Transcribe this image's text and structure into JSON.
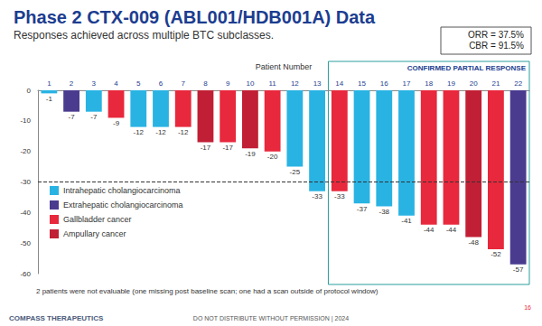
{
  "chart_data": {
    "type": "bar",
    "title": "Phase 2 CTX-009 (ABL001/HDB001A) Data",
    "subtitle": "Responses achieved across multiple BTC subclasses.",
    "x_label": "Patient Number",
    "categories": [
      "1",
      "2",
      "3",
      "4",
      "5",
      "6",
      "7",
      "8",
      "9",
      "10",
      "11",
      "12",
      "13",
      "14",
      "15",
      "16",
      "17",
      "18",
      "19",
      "20",
      "21",
      "22"
    ],
    "series": [
      {
        "name": "Intrahepatic cholangiocarcinoma",
        "color": "#29b3e3",
        "values": [
          -1,
          null,
          -7,
          null,
          -12,
          -12,
          null,
          null,
          null,
          null,
          null,
          -25,
          -33,
          null,
          -37,
          -38,
          -41,
          null,
          null,
          null,
          null,
          null
        ]
      },
      {
        "name": "Extrahepatic cholangiocarcinoma",
        "color": "#4a3b8f",
        "values": [
          null,
          -7,
          null,
          null,
          null,
          null,
          null,
          null,
          null,
          null,
          null,
          null,
          null,
          null,
          null,
          null,
          null,
          null,
          null,
          null,
          null,
          -57
        ]
      },
      {
        "name": "Gallbladder cancer",
        "color": "#e8283c",
        "values": [
          null,
          null,
          null,
          -9,
          null,
          null,
          -12,
          null,
          -17,
          null,
          -20,
          null,
          null,
          -33,
          null,
          null,
          null,
          -44,
          -44,
          null,
          -52,
          null
        ]
      },
      {
        "name": "Ampullary cancer",
        "color": "#c11f35",
        "values": [
          null,
          null,
          null,
          null,
          null,
          null,
          null,
          -17,
          null,
          -19,
          null,
          null,
          null,
          null,
          null,
          null,
          null,
          null,
          null,
          -48,
          null,
          null
        ]
      }
    ],
    "ylim": [
      -60,
      0
    ],
    "yticks": [
      -60,
      -50,
      -40,
      -30,
      -20,
      -10,
      0
    ],
    "grid": false,
    "legend": "lower left",
    "data_labels": true,
    "threshold": -30,
    "highlight": {
      "label": "CONFIRMED PARTIAL RESPONSE",
      "from": "14",
      "to": "22"
    },
    "summary": [
      "ORR = 37.5%",
      "CBR = 91.5%"
    ],
    "footnote": "2 patients were not evaluable (one missing post baseline scan; one had a scan outside of protocol window)",
    "footer": "DO NOT DISTRIBUTE WITHOUT PERMISSION | 2024",
    "logo": "COMPASS THERAPEUTICS",
    "page": "16"
  }
}
